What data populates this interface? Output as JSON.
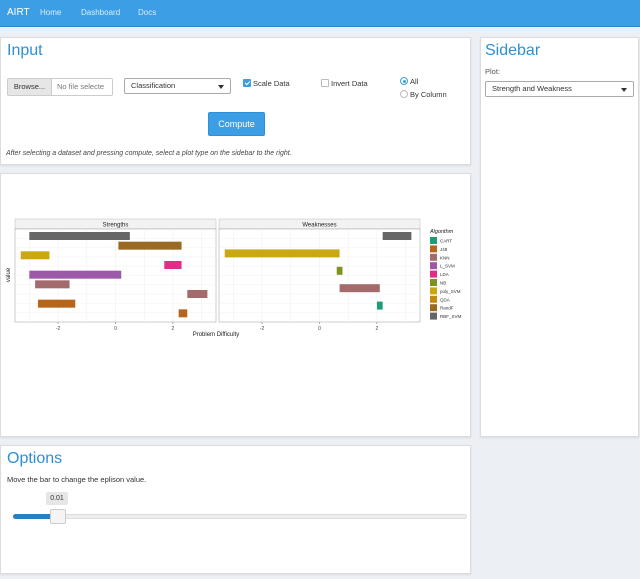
{
  "navbar": {
    "brand": "AIRT",
    "links": [
      "Home",
      "Dashboard",
      "Docs"
    ],
    "color": "#3c9ee4"
  },
  "input_panel": {
    "title": "Input",
    "browse_label": "Browse...",
    "file_placeholder": "No file selecte",
    "problem_type": "Classification",
    "scale_data_label": "Scale Data",
    "scale_data_checked": true,
    "invert_data_label": "Invert Data",
    "invert_data_checked": false,
    "radio_all_label": "All",
    "radio_by_column_label": "By Column",
    "radio_selected": "All",
    "compute_label": "Compute",
    "note": "After selecting a dataset and pressing compute, select a plot type on the sidebar to the right."
  },
  "sidebar": {
    "title": "Sidebar",
    "plot_label": "Plot:",
    "plot_selected": "Strength and Weakness"
  },
  "options_panel": {
    "title": "Options",
    "description": "Move the bar to change the eplison value.",
    "epsilon_value": "0.01"
  },
  "chart_data": {
    "type": "bar",
    "xlabel": "Problem Difficulty",
    "ylabel": "value",
    "facets": [
      "Strengths",
      "Weaknesses"
    ],
    "x_ticks": [
      -2,
      0,
      2
    ],
    "legend_title": "Algorithm",
    "legend_placement": "right",
    "algorithms": [
      {
        "name": "CART",
        "color": "#1b9e77"
      },
      {
        "name": "J48",
        "color": "#b8651c"
      },
      {
        "name": "KNN",
        "color": "#a36b6b"
      },
      {
        "name": "L_SVM",
        "color": "#9b59a8"
      },
      {
        "name": "LDA",
        "color": "#e22d86"
      },
      {
        "name": "NB",
        "color": "#7d9321"
      },
      {
        "name": "poly_SVM",
        "color": "#c9a814"
      },
      {
        "name": "QDA",
        "color": "#c28a10"
      },
      {
        "name": "RandF",
        "color": "#9a6a22"
      },
      {
        "name": "RBF_SVM",
        "color": "#666666"
      }
    ],
    "strengths": [
      {
        "algorithm": "RBF_SVM",
        "from": -3.0,
        "to": 0.5
      },
      {
        "algorithm": "RandF",
        "from": 0.1,
        "to": 2.3
      },
      {
        "algorithm": "poly_SVM",
        "from": -3.3,
        "to": -2.3
      },
      {
        "algorithm": "LDA",
        "from": 1.7,
        "to": 2.3
      },
      {
        "algorithm": "L_SVM",
        "from": -3.0,
        "to": 0.2
      },
      {
        "algorithm": "KNN",
        "from": -2.8,
        "to": -1.6
      },
      {
        "algorithm": "KNN",
        "from": 2.5,
        "to": 3.2
      },
      {
        "algorithm": "J48",
        "from": -2.7,
        "to": -1.4
      },
      {
        "algorithm": "J48",
        "from": 2.2,
        "to": 2.5
      }
    ],
    "weaknesses": [
      {
        "algorithm": "RBF_SVM",
        "from": 2.2,
        "to": 3.2
      },
      {
        "algorithm": "poly_SVM",
        "from": -3.3,
        "to": 0.7
      },
      {
        "algorithm": "NB",
        "from": 0.6,
        "to": 0.8
      },
      {
        "algorithm": "KNN",
        "from": 0.7,
        "to": 2.1
      },
      {
        "algorithm": "CART",
        "from": 2.0,
        "to": 2.2
      }
    ]
  }
}
